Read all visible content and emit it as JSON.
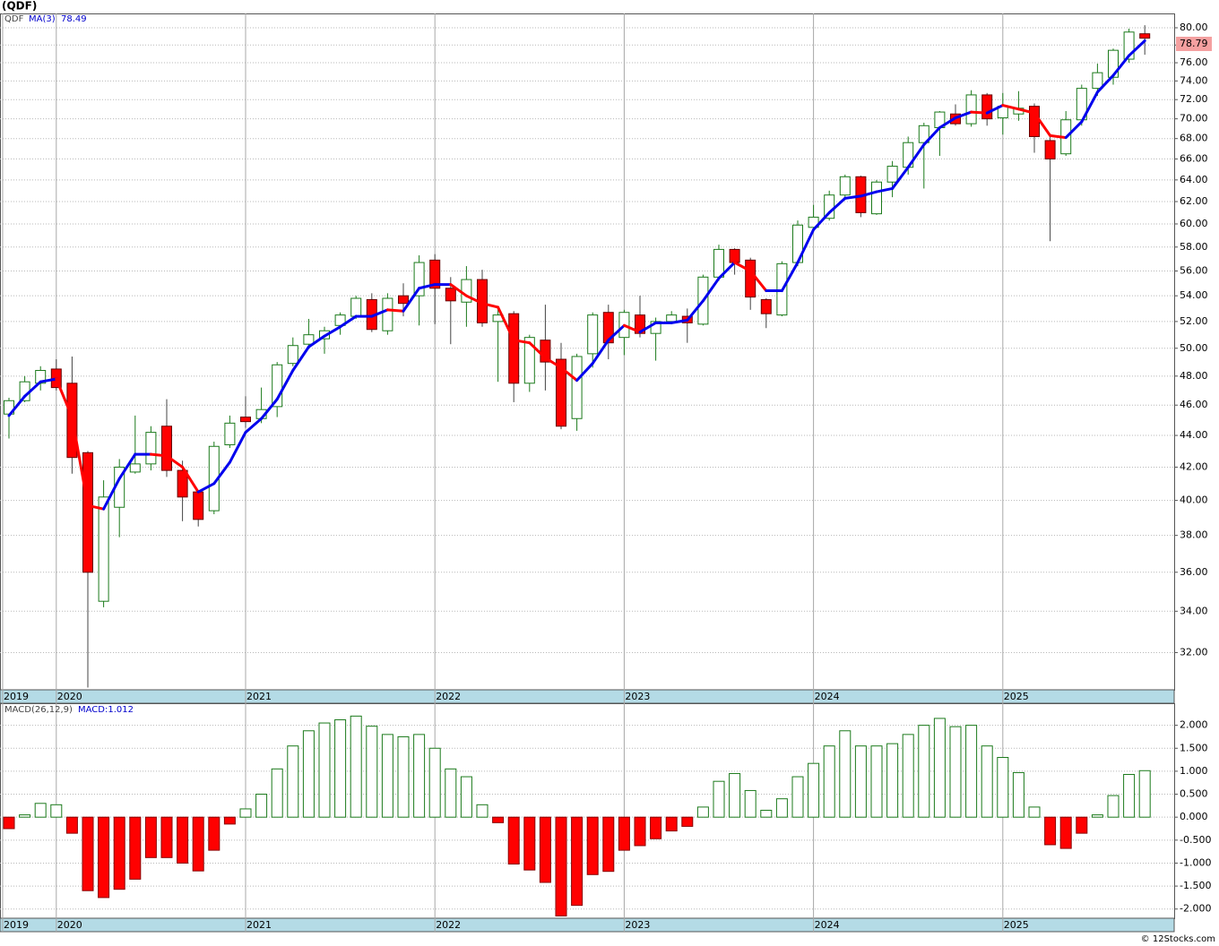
{
  "chart_data": [
    {
      "type": "candlestick",
      "title": "(QDF)",
      "symbol": "QDF",
      "log_scale": true,
      "grid": true,
      "up_color": "#1b7a1b",
      "down_color": "#ff0000",
      "categories": [
        null,
        null,
        null,
        null,
        null,
        null,
        null,
        null,
        null,
        null,
        null,
        null,
        null,
        null,
        null,
        null,
        null,
        null,
        null,
        null,
        null,
        null,
        null,
        null,
        null,
        null,
        null,
        null,
        null,
        null,
        null,
        null,
        null,
        null,
        null,
        null,
        null,
        null,
        null,
        null,
        null,
        null,
        null,
        null,
        null,
        null,
        null,
        null,
        null,
        null,
        null,
        null,
        null,
        null,
        null,
        null,
        null,
        null,
        null,
        null,
        null,
        null,
        null,
        null,
        null,
        null,
        null,
        null,
        null,
        null,
        null,
        null,
        null
      ],
      "open": [
        45.4,
        46.3,
        47.5,
        48.5,
        47.5,
        42.9,
        34.5,
        39.6,
        41.7,
        42.2,
        44.6,
        41.8,
        40.5,
        39.4,
        43.4,
        45.2,
        45.1,
        45.9,
        48.9,
        50.3,
        50.7,
        51.7,
        52.4,
        53.7,
        51.3,
        54.0,
        54.0,
        56.9,
        54.6,
        53.5,
        55.3,
        52.0,
        52.6,
        47.5,
        50.6,
        49.2,
        45.1,
        49.6,
        52.7,
        50.8,
        52.5,
        51.1,
        52.0,
        52.4,
        51.8,
        55.5,
        57.8,
        56.9,
        53.7,
        52.5,
        56.7,
        59.7,
        60.5,
        62.6,
        64.3,
        60.9,
        63.8,
        65.2,
        67.6,
        69.1,
        70.5,
        69.5,
        72.5,
        70.1,
        70.5,
        71.3,
        67.8,
        66.5,
        69.9,
        73.2,
        74.4,
        76.4,
        79.3
      ],
      "high": [
        46.5,
        48.0,
        48.7,
        49.2,
        49.4,
        43.0,
        41.2,
        42.5,
        45.3,
        44.6,
        46.4,
        42.4,
        40.6,
        43.6,
        45.3,
        46.6,
        47.2,
        49.0,
        50.8,
        52.2,
        51.6,
        52.7,
        54.0,
        54.2,
        54.2,
        55.0,
        57.3,
        57.4,
        55.5,
        56.4,
        56.1,
        53.0,
        52.8,
        51.0,
        53.3,
        50.4,
        49.6,
        52.7,
        53.3,
        52.9,
        54.0,
        52.3,
        52.8,
        53.0,
        55.7,
        58.2,
        57.9,
        57.1,
        53.8,
        56.8,
        60.3,
        61.7,
        63.0,
        64.5,
        64.4,
        64.0,
        65.8,
        68.2,
        69.6,
        70.8,
        71.5,
        73.0,
        72.7,
        72.7,
        72.9,
        71.6,
        68.5,
        70.8,
        73.6,
        75.9,
        77.6,
        79.9,
        80.3
      ],
      "low": [
        43.8,
        46.2,
        47.0,
        47.0,
        41.6,
        30.4,
        34.2,
        37.9,
        41.6,
        41.8,
        41.4,
        38.8,
        38.5,
        39.2,
        43.2,
        44.5,
        44.8,
        45.2,
        48.7,
        50.0,
        49.6,
        51.0,
        52.2,
        51.2,
        51.0,
        52.4,
        51.7,
        51.8,
        50.3,
        51.6,
        51.6,
        47.6,
        46.2,
        46.9,
        47.0,
        44.4,
        44.3,
        48.6,
        49.2,
        49.5,
        50.8,
        49.1,
        51.8,
        50.4,
        51.7,
        55.2,
        55.7,
        52.9,
        51.5,
        52.4,
        56.4,
        59.5,
        60.3,
        62.4,
        60.6,
        60.8,
        62.4,
        64.5,
        63.2,
        66.3,
        69.3,
        69.2,
        69.3,
        68.4,
        69.8,
        66.6,
        58.5,
        66.3,
        69.3,
        72.4,
        73.6,
        76.0,
        76.9
      ],
      "close": [
        46.3,
        47.6,
        48.4,
        47.2,
        42.6,
        36.0,
        40.2,
        42.0,
        42.2,
        44.2,
        41.8,
        40.2,
        38.9,
        43.3,
        44.8,
        44.9,
        45.7,
        48.8,
        50.2,
        51.0,
        51.3,
        52.5,
        53.8,
        51.4,
        53.8,
        53.4,
        56.7,
        54.6,
        53.6,
        55.3,
        51.9,
        52.5,
        47.5,
        50.8,
        49.0,
        44.6,
        49.4,
        52.5,
        50.4,
        52.7,
        51.1,
        52.0,
        52.5,
        51.9,
        55.5,
        57.8,
        56.7,
        53.9,
        52.6,
        56.6,
        59.9,
        60.6,
        62.6,
        64.3,
        61.0,
        63.8,
        65.3,
        67.6,
        69.3,
        70.7,
        69.5,
        72.5,
        70.0,
        71.3,
        71.1,
        68.2,
        66.0,
        69.9,
        73.2,
        74.9,
        77.4,
        79.5,
        78.79
      ],
      "ma": {
        "name": "MA(3)",
        "up_color": "#0000ee",
        "down_color": "#ff0000",
        "values": [
          45.3,
          46.6,
          47.6,
          47.8,
          45.2,
          39.7,
          39.5,
          41.3,
          42.8,
          42.8,
          42.7,
          42.0,
          40.5,
          41.0,
          42.3,
          44.2,
          45.1,
          46.4,
          48.4,
          50.1,
          50.9,
          51.6,
          52.4,
          52.4,
          52.9,
          52.8,
          54.6,
          54.9,
          54.9,
          54.0,
          53.4,
          53.1,
          50.6,
          50.4,
          49.3,
          48.6,
          47.7,
          48.9,
          50.6,
          51.7,
          51.2,
          51.9,
          51.9,
          52.1,
          53.6,
          55.4,
          56.7,
          56.0,
          54.4,
          54.4,
          56.7,
          59.5,
          61.0,
          62.3,
          62.5,
          62.9,
          63.2,
          65.2,
          67.4,
          69.1,
          70.1,
          70.7,
          70.6,
          71.4,
          71.0,
          70.6,
          68.3,
          68.1,
          69.7,
          72.8,
          74.6,
          76.8,
          78.49
        ]
      },
      "ylim": [
        30.3,
        81.7
      ],
      "yticks": [
        {
          "value": 32,
          "label": "32.00"
        },
        {
          "value": 34,
          "label": "34.00"
        },
        {
          "value": 36,
          "label": "36.00"
        },
        {
          "value": 38,
          "label": "38.00"
        },
        {
          "value": 40,
          "label": "40.00"
        },
        {
          "value": 42,
          "label": "42.00"
        },
        {
          "value": 44,
          "label": "44.00"
        },
        {
          "value": 46,
          "label": "46.00"
        },
        {
          "value": 48,
          "label": "48.00"
        },
        {
          "value": 50,
          "label": "50.00"
        },
        {
          "value": 52,
          "label": "52.00"
        },
        {
          "value": 54,
          "label": "54.00"
        },
        {
          "value": 56,
          "label": "56.00"
        },
        {
          "value": 58,
          "label": "58.00"
        },
        {
          "value": 60,
          "label": "60.00"
        },
        {
          "value": 62,
          "label": "62.00"
        },
        {
          "value": 64,
          "label": "64.00"
        },
        {
          "value": 66,
          "label": "66.00"
        },
        {
          "value": 68,
          "label": "68.00"
        },
        {
          "value": 70,
          "label": "70.00"
        },
        {
          "value": 72,
          "label": "72.00"
        },
        {
          "value": 74,
          "label": "74.00"
        },
        {
          "value": 76,
          "label": "76.00"
        },
        {
          "value": 78,
          "label": "78.00"
        },
        {
          "value": 80,
          "label": "80.00"
        }
      ],
      "xticks": [
        {
          "value": -0.4,
          "label": "2019"
        },
        {
          "value": 3,
          "label": "2020"
        },
        {
          "value": 15,
          "label": "2021"
        },
        {
          "value": 27,
          "label": "2022"
        },
        {
          "value": 39,
          "label": "2023"
        },
        {
          "value": 51,
          "label": "2024"
        },
        {
          "value": 63,
          "label": "2025"
        }
      ]
    },
    {
      "type": "bar",
      "title": "MACD(26,12,9)",
      "legend_label": "MACD:1.012",
      "grid": true,
      "up_color": "#1b7a1b",
      "down_color": "#ff0000",
      "categories": [
        null,
        null,
        null,
        null,
        null,
        null,
        null,
        null,
        null,
        null,
        null,
        null,
        null,
        null,
        null,
        null,
        null,
        null,
        null,
        null,
        null,
        null,
        null,
        null,
        null,
        null,
        null,
        null,
        null,
        null,
        null,
        null,
        null,
        null,
        null,
        null,
        null,
        null,
        null,
        null,
        null,
        null,
        null,
        null,
        null,
        null,
        null,
        null,
        null,
        null,
        null,
        null,
        null,
        null,
        null,
        null,
        null,
        null,
        null,
        null,
        null,
        null,
        null,
        null,
        null,
        null,
        null,
        null,
        null,
        null,
        null,
        null,
        null
      ],
      "values": [
        -0.25,
        0.05,
        0.3,
        0.27,
        -0.35,
        -1.6,
        -1.75,
        -1.57,
        -1.35,
        -0.88,
        -0.88,
        -1.0,
        -1.17,
        -0.72,
        -0.15,
        0.18,
        0.5,
        1.05,
        1.55,
        1.88,
        2.05,
        2.12,
        2.2,
        1.98,
        1.8,
        1.75,
        1.8,
        1.5,
        1.05,
        0.88,
        0.27,
        -0.12,
        -1.02,
        -1.15,
        -1.42,
        -2.15,
        -1.92,
        -1.25,
        -1.18,
        -0.72,
        -0.62,
        -0.47,
        -0.3,
        -0.2,
        0.22,
        0.78,
        0.95,
        0.58,
        0.15,
        0.4,
        0.88,
        1.17,
        1.55,
        1.88,
        1.55,
        1.55,
        1.6,
        1.8,
        2.0,
        2.15,
        1.97,
        2.0,
        1.55,
        1.3,
        0.97,
        0.22,
        -0.6,
        -0.68,
        -0.35,
        0.05,
        0.47,
        0.93,
        1.012
      ],
      "ylim": [
        -2.2,
        2.48
      ],
      "yticks": [
        {
          "value": -2,
          "label": "-2.000"
        },
        {
          "value": -1.5,
          "label": "-1.500"
        },
        {
          "value": -1,
          "label": "-1.000"
        },
        {
          "value": -0.5,
          "label": "-0.500"
        },
        {
          "value": 0,
          "label": "0.000"
        },
        {
          "value": 0.5,
          "label": "0.500"
        },
        {
          "value": 1,
          "label": "1.000"
        },
        {
          "value": 1.5,
          "label": "1.500"
        },
        {
          "value": 2,
          "label": "2.000"
        }
      ],
      "xticks": [
        {
          "value": -0.4,
          "label": "2019"
        },
        {
          "value": 3,
          "label": "2020"
        },
        {
          "value": 15,
          "label": "2021"
        },
        {
          "value": 27,
          "label": "2022"
        },
        {
          "value": 39,
          "label": "2023"
        },
        {
          "value": 51,
          "label": "2024"
        },
        {
          "value": 63,
          "label": "2025"
        }
      ]
    }
  ],
  "footer": "© 12Stocks.com"
}
